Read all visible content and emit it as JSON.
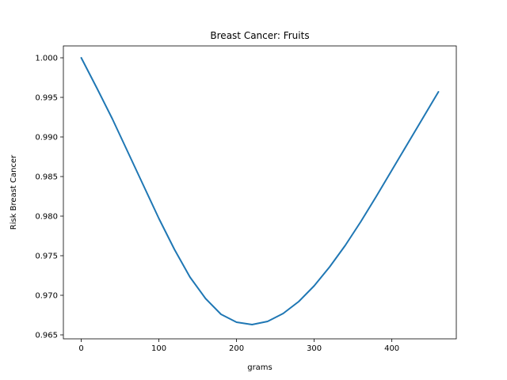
{
  "chart_data": {
    "type": "line",
    "title": "Breast Cancer: Fruits",
    "xlabel": "grams",
    "ylabel": "Risk Breast Cancer",
    "xlim": [
      -23,
      483
    ],
    "ylim": [
      0.9645,
      1.0015
    ],
    "xticks": [
      0,
      100,
      200,
      300,
      400
    ],
    "yticks": [
      0.965,
      0.97,
      0.975,
      0.98,
      0.985,
      0.99,
      0.995,
      1.0
    ],
    "xtick_labels": [
      "0",
      "100",
      "200",
      "300",
      "400"
    ],
    "ytick_labels": [
      "0.965",
      "0.970",
      "0.975",
      "0.980",
      "0.985",
      "0.990",
      "0.995",
      "1.000"
    ],
    "grid": false,
    "series": [
      {
        "color": "#1f77b4",
        "x": [
          0,
          20,
          40,
          60,
          80,
          100,
          120,
          140,
          160,
          180,
          200,
          220,
          240,
          260,
          280,
          300,
          320,
          340,
          360,
          380,
          400,
          420,
          440,
          460
        ],
        "y": [
          1.0,
          0.9962,
          0.9923,
          0.9881,
          0.9839,
          0.9797,
          0.9758,
          0.9723,
          0.9696,
          0.9676,
          0.9666,
          0.9663,
          0.9667,
          0.9677,
          0.9692,
          0.9712,
          0.9736,
          0.9763,
          0.9793,
          0.9825,
          0.9858,
          0.9891,
          0.9924,
          0.9957
        ]
      }
    ]
  }
}
